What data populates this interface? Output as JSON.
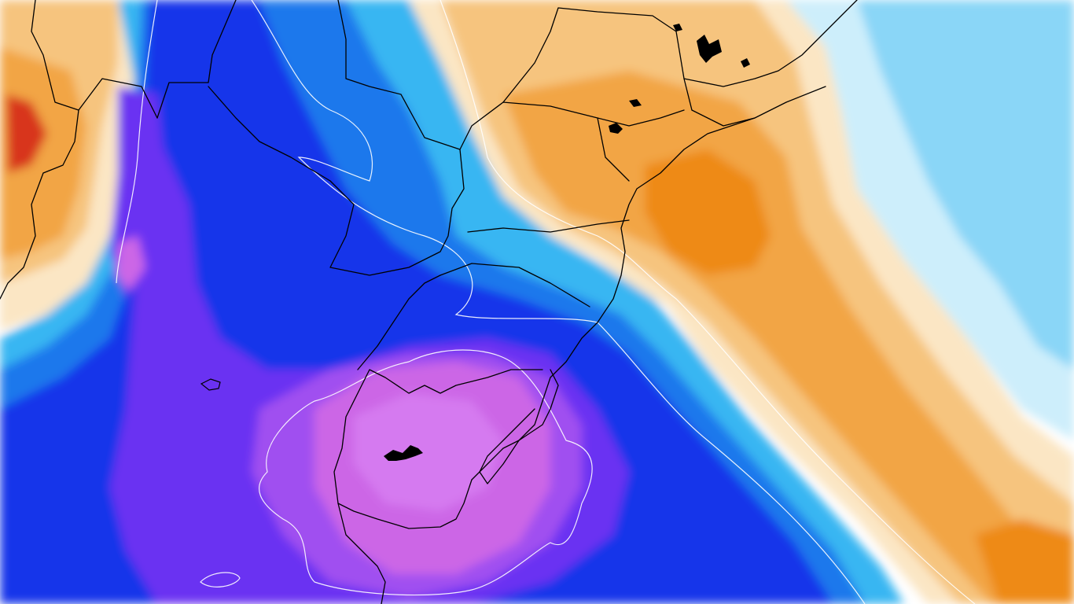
{
  "map": {
    "palette": {
      "background": "#ffffff",
      "warm_light": "#fbe6c4",
      "warm_mid": "#f6c47e",
      "warm_strong": "#f2a544",
      "warm_deep": "#ee8a18",
      "warm_extreme": "#d8361a",
      "cold_faint": "#cdeefb",
      "cold_light": "#8ad6f7",
      "cold_mid": "#37b6f2",
      "cold_strong": "#1a78ec",
      "cold_deep": "#1434ea",
      "cold_violet": "#6a33f2",
      "cold_purple": "#a04ff0",
      "cold_pink": "#cc66e6",
      "cold_magenta": "#d57af0",
      "border_line": "#000000",
      "contour_line": "#ffffff"
    },
    "icons": {
      "map": "temperature-anomaly-map",
      "borders": "political-boundaries",
      "contours": "isotherm-contours",
      "lakes": "lake-outlines"
    }
  }
}
